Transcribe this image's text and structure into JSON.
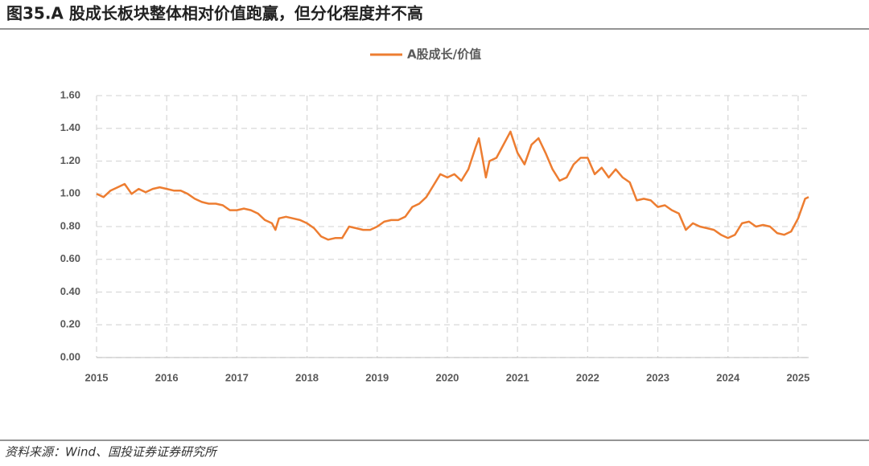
{
  "chart_data": {
    "type": "line",
    "title": "图35.A 股成长板块整体相对价值跑赢，但分化程度并不高",
    "source": "资料来源：Wind、国投证券证券研究所",
    "x": [
      2015.0,
      2015.1,
      2015.2,
      2015.3,
      2015.4,
      2015.5,
      2015.6,
      2015.7,
      2015.8,
      2015.9,
      2016.0,
      2016.1,
      2016.2,
      2016.3,
      2016.4,
      2016.5,
      2016.6,
      2016.7,
      2016.8,
      2016.9,
      2017.0,
      2017.1,
      2017.2,
      2017.3,
      2017.4,
      2017.5,
      2017.55,
      2017.6,
      2017.7,
      2017.8,
      2017.9,
      2018.0,
      2018.1,
      2018.2,
      2018.3,
      2018.4,
      2018.5,
      2018.6,
      2018.7,
      2018.8,
      2018.9,
      2019.0,
      2019.1,
      2019.2,
      2019.3,
      2019.4,
      2019.5,
      2019.6,
      2019.7,
      2019.8,
      2019.9,
      2020.0,
      2020.1,
      2020.2,
      2020.3,
      2020.4,
      2020.45,
      2020.5,
      2020.55,
      2020.6,
      2020.7,
      2020.8,
      2020.9,
      2021.0,
      2021.1,
      2021.2,
      2021.3,
      2021.4,
      2021.5,
      2021.6,
      2021.7,
      2021.8,
      2021.9,
      2022.0,
      2022.1,
      2022.2,
      2022.3,
      2022.4,
      2022.5,
      2022.6,
      2022.7,
      2022.8,
      2022.9,
      2023.0,
      2023.1,
      2023.2,
      2023.3,
      2023.4,
      2023.5,
      2023.6,
      2023.7,
      2023.8,
      2023.9,
      2024.0,
      2024.1,
      2024.2,
      2024.3,
      2024.4,
      2024.5,
      2024.6,
      2024.7,
      2024.8,
      2024.9,
      2025.0,
      2025.1,
      2025.15
    ],
    "series": [
      {
        "name": "A股成长/价值",
        "color": "#ed7d31",
        "values": [
          1.0,
          0.98,
          1.02,
          1.04,
          1.06,
          1.0,
          1.03,
          1.01,
          1.03,
          1.04,
          1.03,
          1.02,
          1.02,
          1.0,
          0.97,
          0.95,
          0.94,
          0.94,
          0.93,
          0.9,
          0.9,
          0.91,
          0.9,
          0.88,
          0.84,
          0.82,
          0.78,
          0.85,
          0.86,
          0.85,
          0.84,
          0.82,
          0.79,
          0.74,
          0.72,
          0.73,
          0.73,
          0.8,
          0.79,
          0.78,
          0.78,
          0.8,
          0.83,
          0.84,
          0.84,
          0.86,
          0.92,
          0.94,
          0.98,
          1.05,
          1.12,
          1.1,
          1.12,
          1.08,
          1.15,
          1.28,
          1.34,
          1.22,
          1.1,
          1.2,
          1.22,
          1.3,
          1.38,
          1.25,
          1.18,
          1.3,
          1.34,
          1.25,
          1.15,
          1.08,
          1.1,
          1.18,
          1.22,
          1.22,
          1.12,
          1.16,
          1.1,
          1.15,
          1.1,
          1.07,
          0.96,
          0.97,
          0.96,
          0.92,
          0.93,
          0.9,
          0.88,
          0.78,
          0.82,
          0.8,
          0.79,
          0.78,
          0.75,
          0.73,
          0.75,
          0.82,
          0.83,
          0.8,
          0.81,
          0.8,
          0.76,
          0.75,
          0.77,
          0.85,
          0.97,
          0.98
        ]
      }
    ],
    "xlim": [
      2015,
      2025.15
    ],
    "xticks": [
      2015,
      2016,
      2017,
      2018,
      2019,
      2020,
      2021,
      2022,
      2023,
      2024,
      2025
    ],
    "ylim": [
      0,
      1.6
    ],
    "yticks": [
      {
        "value": 0,
        "label": "0.00"
      },
      {
        "value": 0.2,
        "label": "0.20"
      },
      {
        "value": 0.4,
        "label": "0.40"
      },
      {
        "value": 0.6,
        "label": "0.60"
      },
      {
        "value": 0.8,
        "label": "0.80"
      },
      {
        "value": 1,
        "label": "1.00"
      },
      {
        "value": 1.2,
        "label": "1.20"
      },
      {
        "value": 1.4,
        "label": "1.40"
      },
      {
        "value": 1.6,
        "label": "1.60"
      }
    ],
    "grid": true,
    "legend": "top"
  }
}
